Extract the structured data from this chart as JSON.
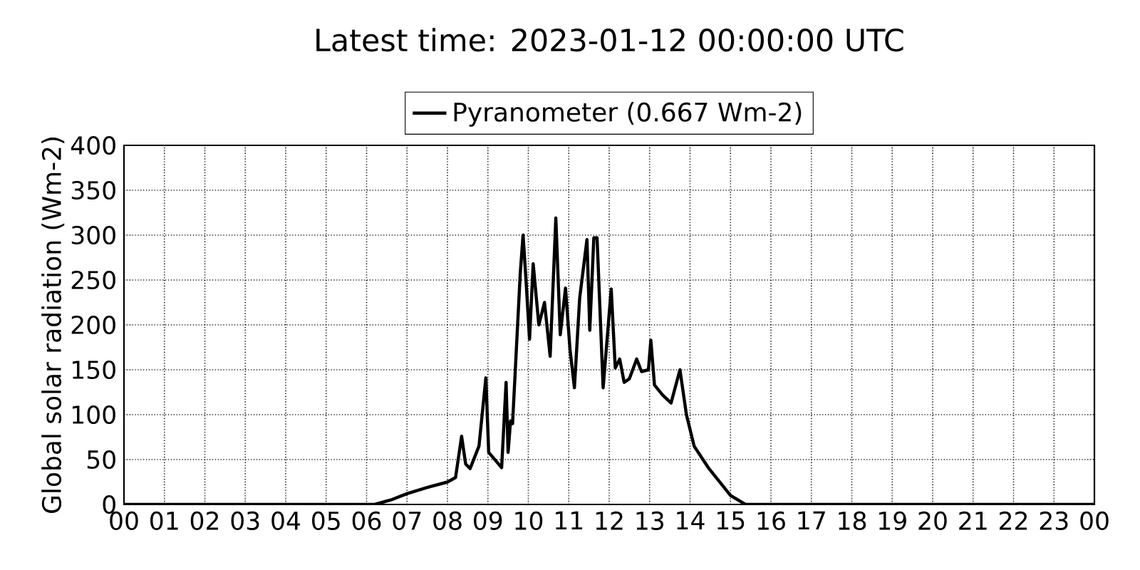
{
  "chart_data": {
    "type": "line",
    "title": "Latest time: 2023-01-12 00:00:00 UTC",
    "ylabel": "Global solar radiation (Wm-2)",
    "series": [
      {
        "name": "Pyranometer (0.667 Wm-2)",
        "color": "#000000",
        "x": [
          0,
          6.2,
          6.6,
          7.0,
          7.5,
          8.0,
          8.2,
          8.35,
          8.45,
          8.56,
          8.78,
          8.95,
          9.02,
          9.34,
          9.45,
          9.5,
          9.56,
          9.61,
          9.8,
          9.87,
          9.94,
          10.03,
          10.12,
          10.26,
          10.4,
          10.54,
          10.68,
          10.79,
          10.92,
          11.03,
          11.14,
          11.27,
          11.45,
          11.52,
          11.62,
          11.7,
          11.85,
          12.05,
          12.15,
          12.26,
          12.37,
          12.5,
          12.68,
          12.8,
          12.97,
          13.03,
          13.12,
          13.32,
          13.53,
          13.75,
          13.91,
          14.1,
          14.45,
          15.0,
          15.37,
          24
        ],
        "values": [
          0,
          0,
          5,
          12,
          19,
          25,
          30,
          76,
          45,
          40,
          65,
          141,
          58,
          41,
          136,
          58,
          93,
          90,
          257,
          300,
          252,
          184,
          268,
          200,
          225,
          165,
          319,
          189,
          241,
          173,
          130,
          230,
          295,
          194,
          297,
          297,
          130,
          240,
          152,
          162,
          136,
          140,
          162,
          148,
          150,
          183,
          133,
          122,
          113,
          150,
          100,
          65,
          41,
          10,
          0,
          0
        ]
      }
    ],
    "xlim": [
      0,
      24
    ],
    "xticks": [
      {
        "value": 0,
        "label": "00"
      },
      {
        "value": 1,
        "label": "01"
      },
      {
        "value": 2,
        "label": "02"
      },
      {
        "value": 3,
        "label": "03"
      },
      {
        "value": 4,
        "label": "04"
      },
      {
        "value": 5,
        "label": "05"
      },
      {
        "value": 6,
        "label": "06"
      },
      {
        "value": 7,
        "label": "07"
      },
      {
        "value": 8,
        "label": "08"
      },
      {
        "value": 9,
        "label": "09"
      },
      {
        "value": 10,
        "label": "10"
      },
      {
        "value": 11,
        "label": "11"
      },
      {
        "value": 12,
        "label": "12"
      },
      {
        "value": 13,
        "label": "13"
      },
      {
        "value": 14,
        "label": "14"
      },
      {
        "value": 15,
        "label": "15"
      },
      {
        "value": 16,
        "label": "16"
      },
      {
        "value": 17,
        "label": "17"
      },
      {
        "value": 18,
        "label": "18"
      },
      {
        "value": 19,
        "label": "19"
      },
      {
        "value": 20,
        "label": "20"
      },
      {
        "value": 21,
        "label": "21"
      },
      {
        "value": 22,
        "label": "22"
      },
      {
        "value": 23,
        "label": "23"
      },
      {
        "value": 24,
        "label": "00"
      }
    ],
    "ylim": [
      0,
      400
    ],
    "yticks": [
      0,
      50,
      100,
      150,
      200,
      250,
      300,
      350,
      400
    ],
    "grid": true,
    "legend": "top",
    "marker": "none",
    "line_style": "solid"
  }
}
